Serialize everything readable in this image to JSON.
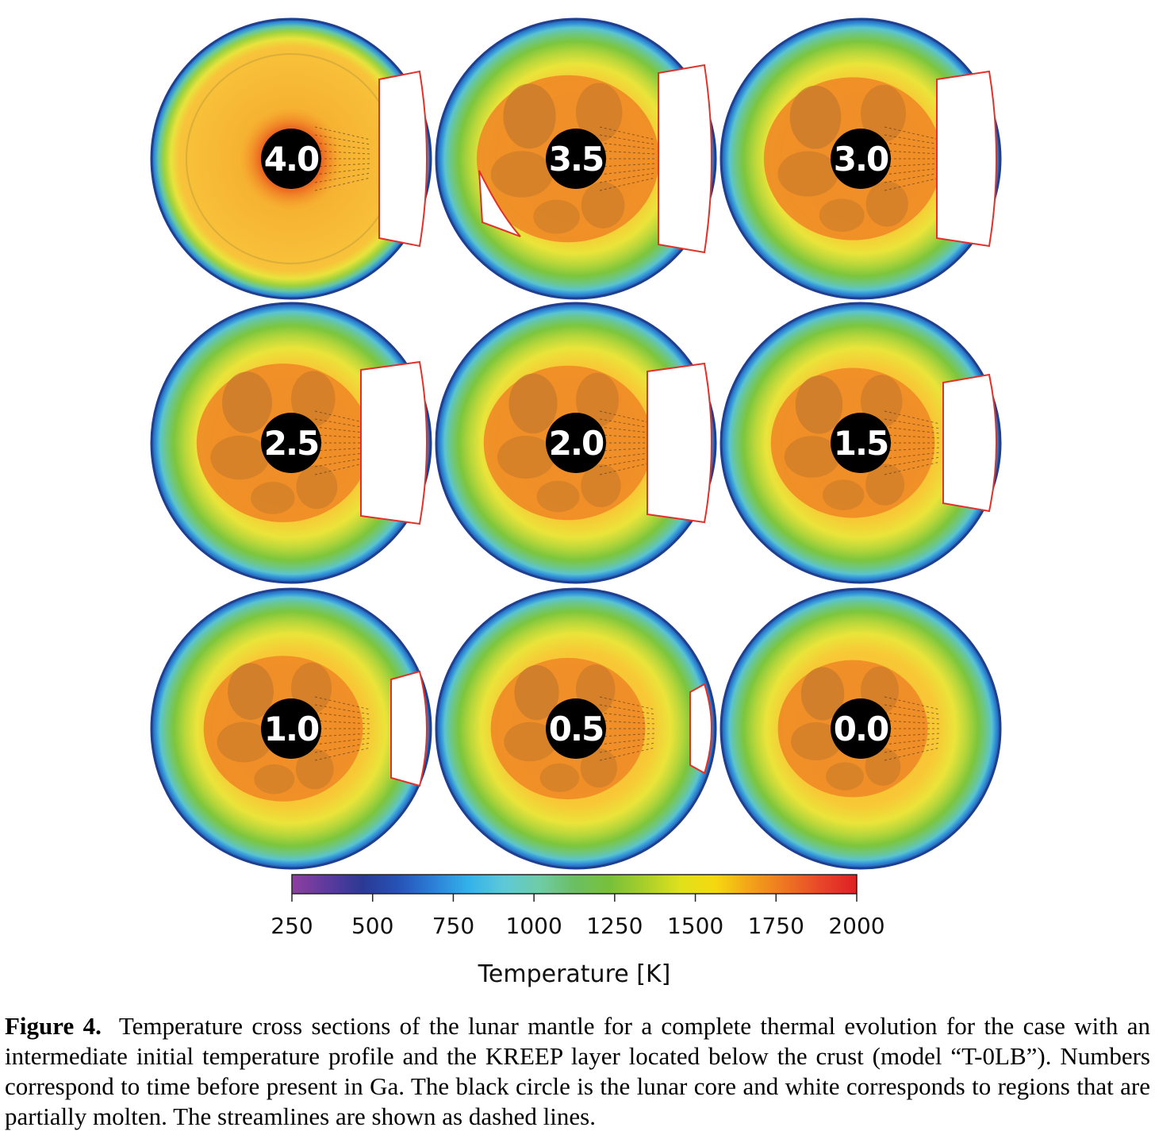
{
  "figure": {
    "panels": [
      {
        "label": "4.0"
      },
      {
        "label": "3.5"
      },
      {
        "label": "3.0"
      },
      {
        "label": "2.5"
      },
      {
        "label": "2.0"
      },
      {
        "label": "1.5"
      },
      {
        "label": "1.0"
      },
      {
        "label": "0.5"
      },
      {
        "label": "0.0"
      }
    ],
    "colorbar": {
      "ticks": [
        "250",
        "500",
        "750",
        "1000",
        "1250",
        "1500",
        "1750",
        "2000"
      ],
      "min": 250,
      "max": 2000,
      "title": "Temperature [K]",
      "colors": [
        "#8e3fa0",
        "#5d3a9e",
        "#2a3a94",
        "#2652b6",
        "#2b7fd6",
        "#33b2ea",
        "#5ec8d8",
        "#6fcca6",
        "#6bbf63",
        "#78c03a",
        "#a9cf2a",
        "#dfe11c",
        "#f6d80f",
        "#f2a21a",
        "#ee7422",
        "#e8452a",
        "#de1f24"
      ]
    }
  },
  "caption": {
    "label": "Figure 4.",
    "text": "Temperature cross sections of the lunar mantle for a complete thermal evolution for the case with an intermediate initial temperature profile and the KREEP layer located below the crust (model “T-0LB”). Numbers correspond to time before present in Ga. The black circle is the lunar core and white corresponds to regions that are partially molten. The streamlines are shown as dashed lines."
  }
}
